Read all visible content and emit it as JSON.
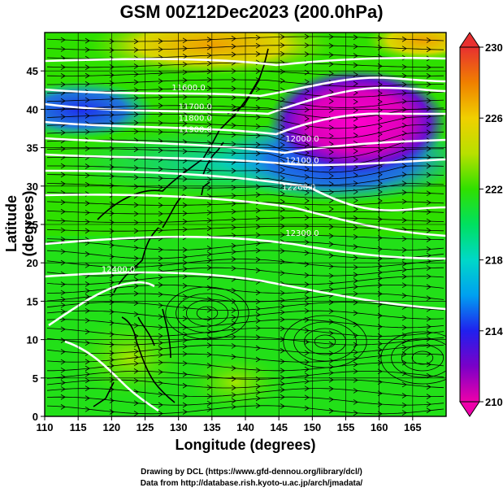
{
  "title": "GSM 00Z12Dec2023 (200.0hPa)",
  "credits": [
    "Drawing by DCL (https://www.gfd-dennou.org/library/dcl/)",
    "Data from http://database.rish.kyoto-u.ac.jp/arch/jmadata/"
  ],
  "chart_data": {
    "type": "heatmap",
    "xlabel": "Longitude (degrees)",
    "ylabel": "Latitude  (degrees)",
    "xlim": [
      110,
      170
    ],
    "ylim": [
      0,
      50
    ],
    "xticks": [
      110,
      115,
      120,
      125,
      130,
      135,
      140,
      145,
      150,
      155,
      160,
      165
    ],
    "yticks": [
      0,
      5,
      10,
      15,
      20,
      25,
      30,
      35,
      40,
      45
    ],
    "grid": true,
    "colorbar": {
      "ticks": [
        210,
        214,
        218,
        222,
        226,
        230
      ],
      "min": 210,
      "max": 230,
      "colors": [
        "#ee00aa",
        "#7a00c8",
        "#2020ee",
        "#00a0f0",
        "#00d8c8",
        "#00e060",
        "#30e000",
        "#b8e000",
        "#f0d000",
        "#f08000",
        "#e83030"
      ]
    },
    "contour_labels": [
      {
        "text": "11600.0",
        "lon": 131.5,
        "lat": 42.5
      },
      {
        "text": "11700.0",
        "lon": 132.5,
        "lat": 40.0
      },
      {
        "text": "11800.0",
        "lon": 132.5,
        "lat": 38.5
      },
      {
        "text": "11900.0",
        "lon": 132.5,
        "lat": 37.0
      },
      {
        "text": "12000.0",
        "lon": 148.5,
        "lat": 35.8
      },
      {
        "text": "12100.0",
        "lon": 148.5,
        "lat": 33.0
      },
      {
        "text": "12200.0",
        "lon": 148.0,
        "lat": 29.5
      },
      {
        "text": "12300.0",
        "lon": 148.5,
        "lat": 23.5
      },
      {
        "text": "12400.0",
        "lon": 121.0,
        "lat": 18.8
      }
    ]
  }
}
